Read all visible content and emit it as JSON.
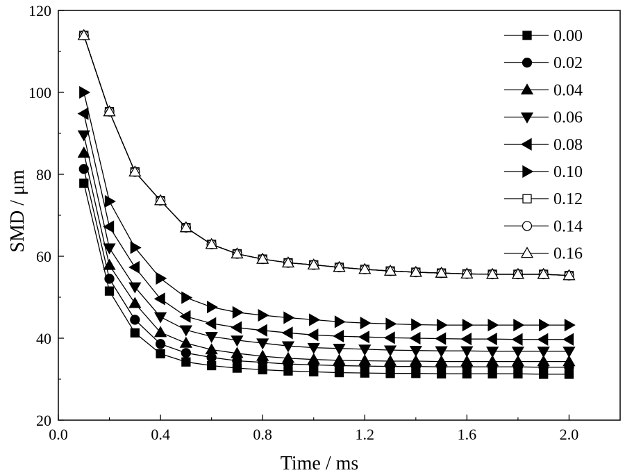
{
  "chart_data": {
    "type": "line",
    "title": "",
    "xlabel": "Time / ms",
    "ylabel": "SMD / μm",
    "xlim": [
      0.0,
      2.2
    ],
    "ylim": [
      20,
      120
    ],
    "xticks": [
      0.0,
      0.4,
      0.8,
      1.2,
      1.6,
      2.0
    ],
    "xtick_labels": [
      "0.0",
      "0.4",
      "0.8",
      "1.2",
      "1.6",
      "2.0"
    ],
    "yticks": [
      20,
      40,
      60,
      80,
      100,
      120
    ],
    "ytick_labels": [
      "20",
      "40",
      "60",
      "80",
      "100",
      "120"
    ],
    "grid": false,
    "legend_position": "top-right",
    "x": [
      0.1,
      0.2,
      0.3,
      0.4,
      0.5,
      0.6,
      0.7,
      0.8,
      0.9,
      1.0,
      1.1,
      1.2,
      1.3,
      1.4,
      1.5,
      1.6,
      1.7,
      1.8,
      1.9,
      2.0
    ],
    "series": [
      {
        "name": "0.00",
        "marker": "square-filled",
        "values": [
          77.8,
          51.5,
          41.3,
          36.2,
          34.2,
          33.3,
          32.7,
          32.3,
          32.0,
          31.8,
          31.6,
          31.5,
          31.4,
          31.4,
          31.3,
          31.3,
          31.3,
          31.3,
          31.2,
          31.2
        ]
      },
      {
        "name": "0.02",
        "marker": "circle-filled",
        "values": [
          81.3,
          54.5,
          44.5,
          38.6,
          36.4,
          35.3,
          34.5,
          34.1,
          33.7,
          33.5,
          33.3,
          33.2,
          33.1,
          33.1,
          33.0,
          33.0,
          33.0,
          33.0,
          32.9,
          32.9
        ]
      },
      {
        "name": "0.04",
        "marker": "triangle-up-filled",
        "values": [
          85.2,
          57.8,
          48.5,
          41.4,
          38.8,
          37.2,
          36.3,
          35.6,
          35.1,
          34.8,
          34.6,
          34.5,
          34.4,
          34.4,
          34.3,
          34.3,
          34.3,
          34.3,
          34.3,
          34.3
        ]
      },
      {
        "name": "0.06",
        "marker": "triangle-down-filled",
        "values": [
          89.6,
          62.0,
          52.5,
          45.2,
          42.0,
          40.4,
          39.5,
          38.8,
          38.1,
          37.7,
          37.5,
          37.3,
          37.1,
          37.0,
          36.9,
          36.9,
          36.8,
          36.8,
          36.8,
          36.8
        ]
      },
      {
        "name": "0.08",
        "marker": "triangle-left-filled",
        "values": [
          94.8,
          67.2,
          57.3,
          49.6,
          45.3,
          43.6,
          42.6,
          41.9,
          41.3,
          40.8,
          40.5,
          40.3,
          40.1,
          40.0,
          39.9,
          39.8,
          39.8,
          39.7,
          39.7,
          39.7
        ]
      },
      {
        "name": "0.10",
        "marker": "triangle-right-filled",
        "values": [
          100.0,
          73.4,
          62.1,
          54.6,
          49.9,
          47.6,
          46.3,
          45.6,
          45.0,
          44.5,
          44.0,
          43.7,
          43.5,
          43.3,
          43.2,
          43.2,
          43.2,
          43.2,
          43.2,
          43.2
        ]
      },
      {
        "name": "0.12",
        "marker": "square-open",
        "values": [
          113.9,
          95.3,
          80.6,
          73.6,
          67.0,
          62.9,
          60.6,
          59.3,
          58.4,
          57.9,
          57.3,
          56.8,
          56.4,
          56.1,
          55.9,
          55.7,
          55.6,
          55.6,
          55.6,
          55.3
        ]
      },
      {
        "name": "0.14",
        "marker": "circle-open",
        "values": [
          113.9,
          95.3,
          80.6,
          73.6,
          67.0,
          62.9,
          60.6,
          59.3,
          58.4,
          57.9,
          57.3,
          56.8,
          56.4,
          56.1,
          55.9,
          55.7,
          55.6,
          55.6,
          55.6,
          55.3
        ]
      },
      {
        "name": "0.16",
        "marker": "triangle-up-open",
        "values": [
          113.9,
          95.3,
          80.6,
          73.6,
          67.0,
          62.9,
          60.6,
          59.3,
          58.4,
          57.9,
          57.3,
          56.8,
          56.4,
          56.1,
          55.9,
          55.7,
          55.6,
          55.6,
          55.6,
          55.3
        ]
      }
    ]
  }
}
